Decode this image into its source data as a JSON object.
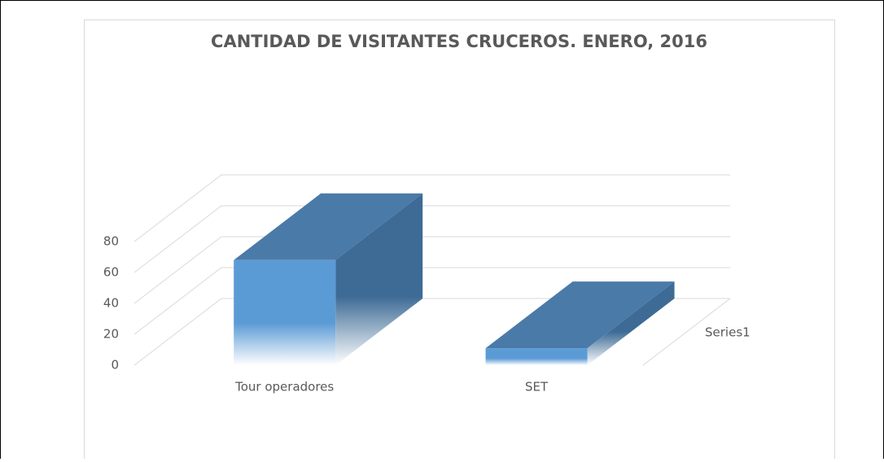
{
  "chart_data": {
    "type": "bar3d",
    "title": "CANTIDAD DE VISITANTES CRUCEROS. ENERO, 2016",
    "categories": [
      "Tour operadores",
      "SET"
    ],
    "series": [
      {
        "name": "Series1",
        "color": "#5b9bd5",
        "values": [
          68,
          11
        ]
      }
    ],
    "ylim": [
      0,
      80
    ],
    "yticks": [
      0,
      20,
      40,
      60,
      80
    ],
    "grid": true
  }
}
